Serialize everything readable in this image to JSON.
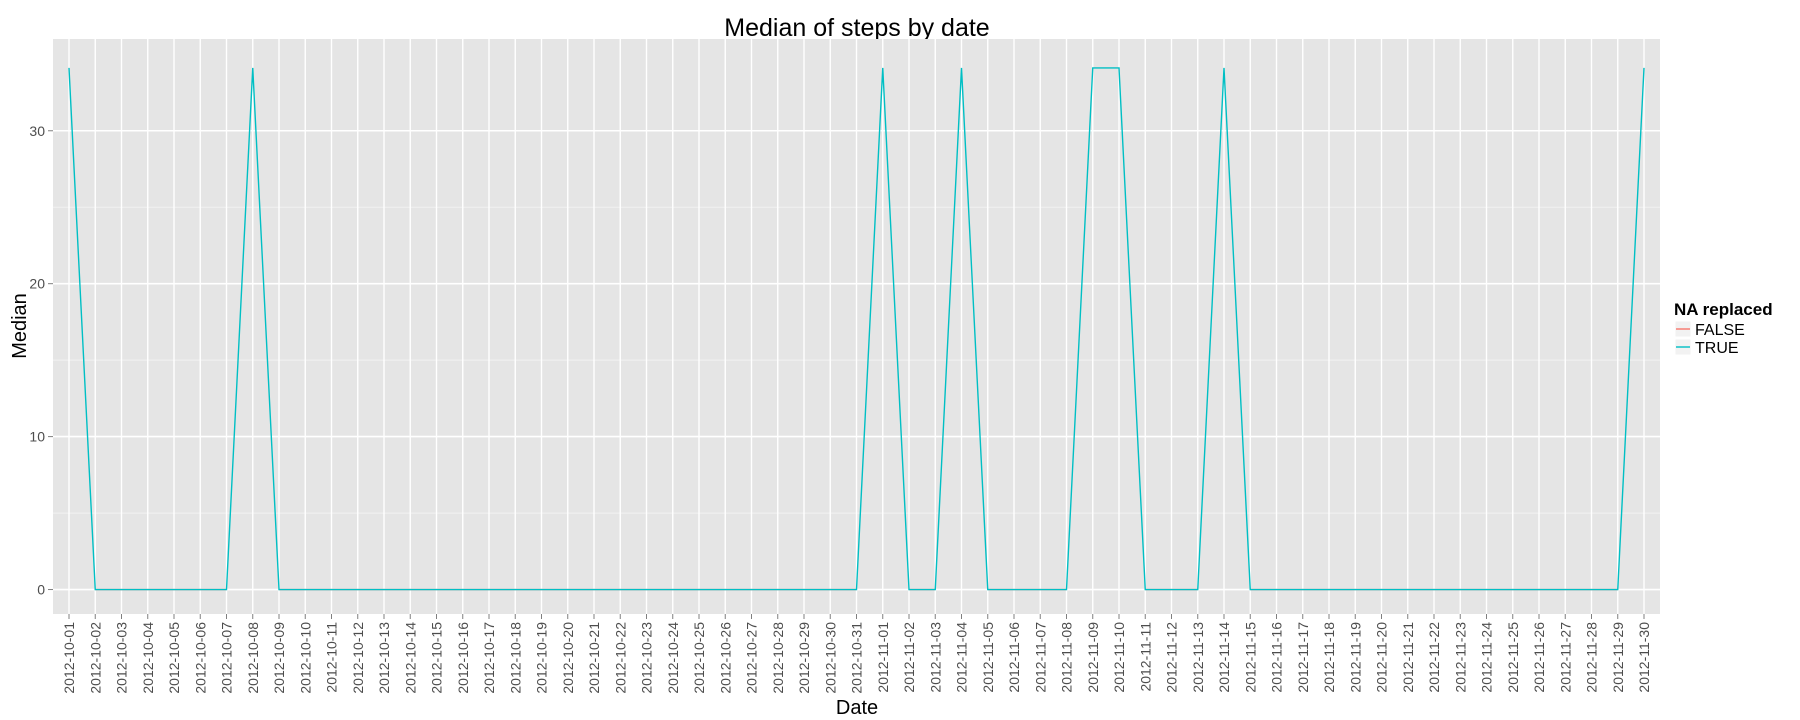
{
  "chart_data": {
    "type": "line",
    "title": "Median of steps by date",
    "xlabel": "Date",
    "ylabel": "Median",
    "categories": [
      "2012-10-01",
      "2012-10-02",
      "2012-10-03",
      "2012-10-04",
      "2012-10-05",
      "2012-10-06",
      "2012-10-07",
      "2012-10-08",
      "2012-10-09",
      "2012-10-10",
      "2012-10-11",
      "2012-10-12",
      "2012-10-13",
      "2012-10-14",
      "2012-10-15",
      "2012-10-16",
      "2012-10-17",
      "2012-10-18",
      "2012-10-19",
      "2012-10-20",
      "2012-10-21",
      "2012-10-22",
      "2012-10-23",
      "2012-10-24",
      "2012-10-25",
      "2012-10-26",
      "2012-10-27",
      "2012-10-28",
      "2012-10-29",
      "2012-10-30",
      "2012-10-31",
      "2012-11-01",
      "2012-11-02",
      "2012-11-03",
      "2012-11-04",
      "2012-11-05",
      "2012-11-06",
      "2012-11-07",
      "2012-11-08",
      "2012-11-09",
      "2012-11-10",
      "2012-11-11",
      "2012-11-12",
      "2012-11-13",
      "2012-11-14",
      "2012-11-15",
      "2012-11-16",
      "2012-11-17",
      "2012-11-18",
      "2012-11-19",
      "2012-11-20",
      "2012-11-21",
      "2012-11-22",
      "2012-11-23",
      "2012-11-24",
      "2012-11-25",
      "2012-11-26",
      "2012-11-27",
      "2012-11-28",
      "2012-11-29",
      "2012-11-30"
    ],
    "series": [
      {
        "name": "FALSE",
        "color": "#F8766D",
        "values": [
          null,
          0,
          0,
          0,
          0,
          0,
          0,
          null,
          0,
          0,
          0,
          0,
          0,
          0,
          0,
          0,
          0,
          0,
          0,
          0,
          0,
          0,
          0,
          0,
          0,
          0,
          0,
          0,
          0,
          0,
          0,
          null,
          0,
          0,
          null,
          0,
          0,
          0,
          0,
          null,
          null,
          0,
          0,
          0,
          null,
          0,
          0,
          0,
          0,
          0,
          0,
          0,
          0,
          0,
          0,
          0,
          0,
          0,
          0,
          0,
          null
        ]
      },
      {
        "name": "TRUE",
        "color": "#00BFC4",
        "values": [
          34.11,
          0,
          0,
          0,
          0,
          0,
          0,
          34.11,
          0,
          0,
          0,
          0,
          0,
          0,
          0,
          0,
          0,
          0,
          0,
          0,
          0,
          0,
          0,
          0,
          0,
          0,
          0,
          0,
          0,
          0,
          0,
          34.11,
          0,
          0,
          34.11,
          0,
          0,
          0,
          0,
          34.11,
          34.11,
          0,
          0,
          0,
          34.11,
          0,
          0,
          0,
          0,
          0,
          0,
          0,
          0,
          0,
          0,
          0,
          0,
          0,
          0,
          0,
          34.11
        ]
      }
    ],
    "y_ticks": [
      0,
      10,
      20,
      30
    ],
    "ylim": [
      -1.6,
      36.0
    ],
    "grid": true,
    "legend": {
      "title": "NA replaced",
      "placement": "right"
    },
    "panel_color": "#E5E5E5",
    "grid_color": "#FFFFFF"
  }
}
